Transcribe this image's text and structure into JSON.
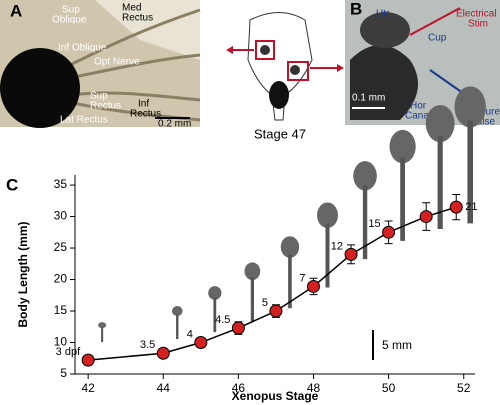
{
  "panels": {
    "a": {
      "letter": "A",
      "labels": [
        [
          "Sup",
          "Oblique"
        ],
        [
          "Med",
          "Rectus"
        ],
        [
          "Inf Oblique"
        ],
        [
          "Opt Nerve"
        ],
        [
          "Lat Rectus"
        ],
        [
          "Sup",
          "Rectus"
        ],
        [
          "Inf",
          "Rectus"
        ],
        [
          "0.2 mm"
        ]
      ]
    },
    "center": {
      "caption": "Stage 47"
    },
    "b": {
      "letter": "B",
      "labels": [
        [
          "Utr"
        ],
        [
          "Cup"
        ],
        [
          "Electrical",
          "Stim"
        ],
        [
          "0.1 mm"
        ],
        [
          "Hor",
          "Canal"
        ],
        [
          "Pressure",
          "Pulse"
        ]
      ]
    },
    "c": {
      "letter": "C",
      "scale_bar": "5 mm"
    }
  },
  "chart_data": {
    "type": "line",
    "x_label": "Xenopus Stage",
    "y_label": "Body Length (mm)",
    "x": [
      42,
      44,
      45,
      46,
      47,
      48,
      49,
      50,
      51,
      51.8
    ],
    "values": [
      7.2,
      8.3,
      10,
      12.3,
      15,
      18.9,
      24,
      27.5,
      30,
      31.5
    ],
    "errors": [
      0.7,
      0.7,
      0.7,
      1,
      1,
      1.3,
      1.5,
      1.8,
      2.2,
      2
    ],
    "point_labels": [
      "3 dpf",
      "3.5",
      "4",
      "4.5",
      "5",
      "7",
      "12",
      "15",
      null,
      "21"
    ],
    "color": "#d42020",
    "xlim": [
      41.65,
      52.3
    ],
    "xticks": [
      42,
      44,
      46,
      48,
      50,
      52
    ],
    "ylim": [
      5,
      36.6
    ],
    "yticks": [
      5,
      10,
      15,
      20,
      25,
      30,
      35
    ]
  }
}
